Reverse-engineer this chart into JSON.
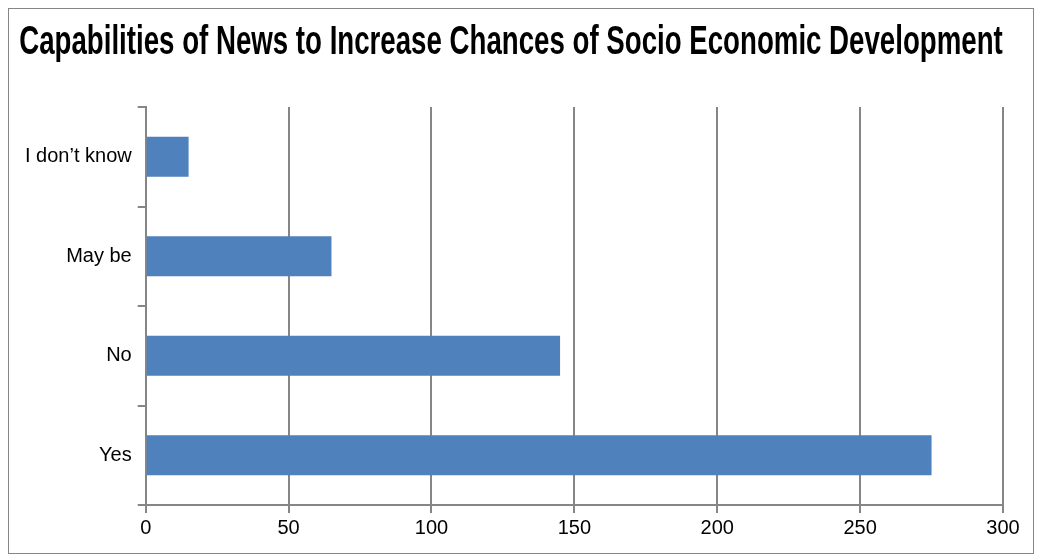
{
  "chart_data": {
    "type": "bar",
    "orientation": "horizontal",
    "title": "Capabilities of News to Increase Chances of Socio Economic Development",
    "categories": [
      "I don’t know",
      "May be",
      "No",
      "Yes"
    ],
    "values": [
      15,
      65,
      145,
      275
    ],
    "color": "#4f81bd",
    "xlim": [
      0,
      300
    ],
    "xticks": [
      0,
      50,
      100,
      150,
      200,
      250,
      300
    ],
    "grid": "x",
    "legend": false
  }
}
